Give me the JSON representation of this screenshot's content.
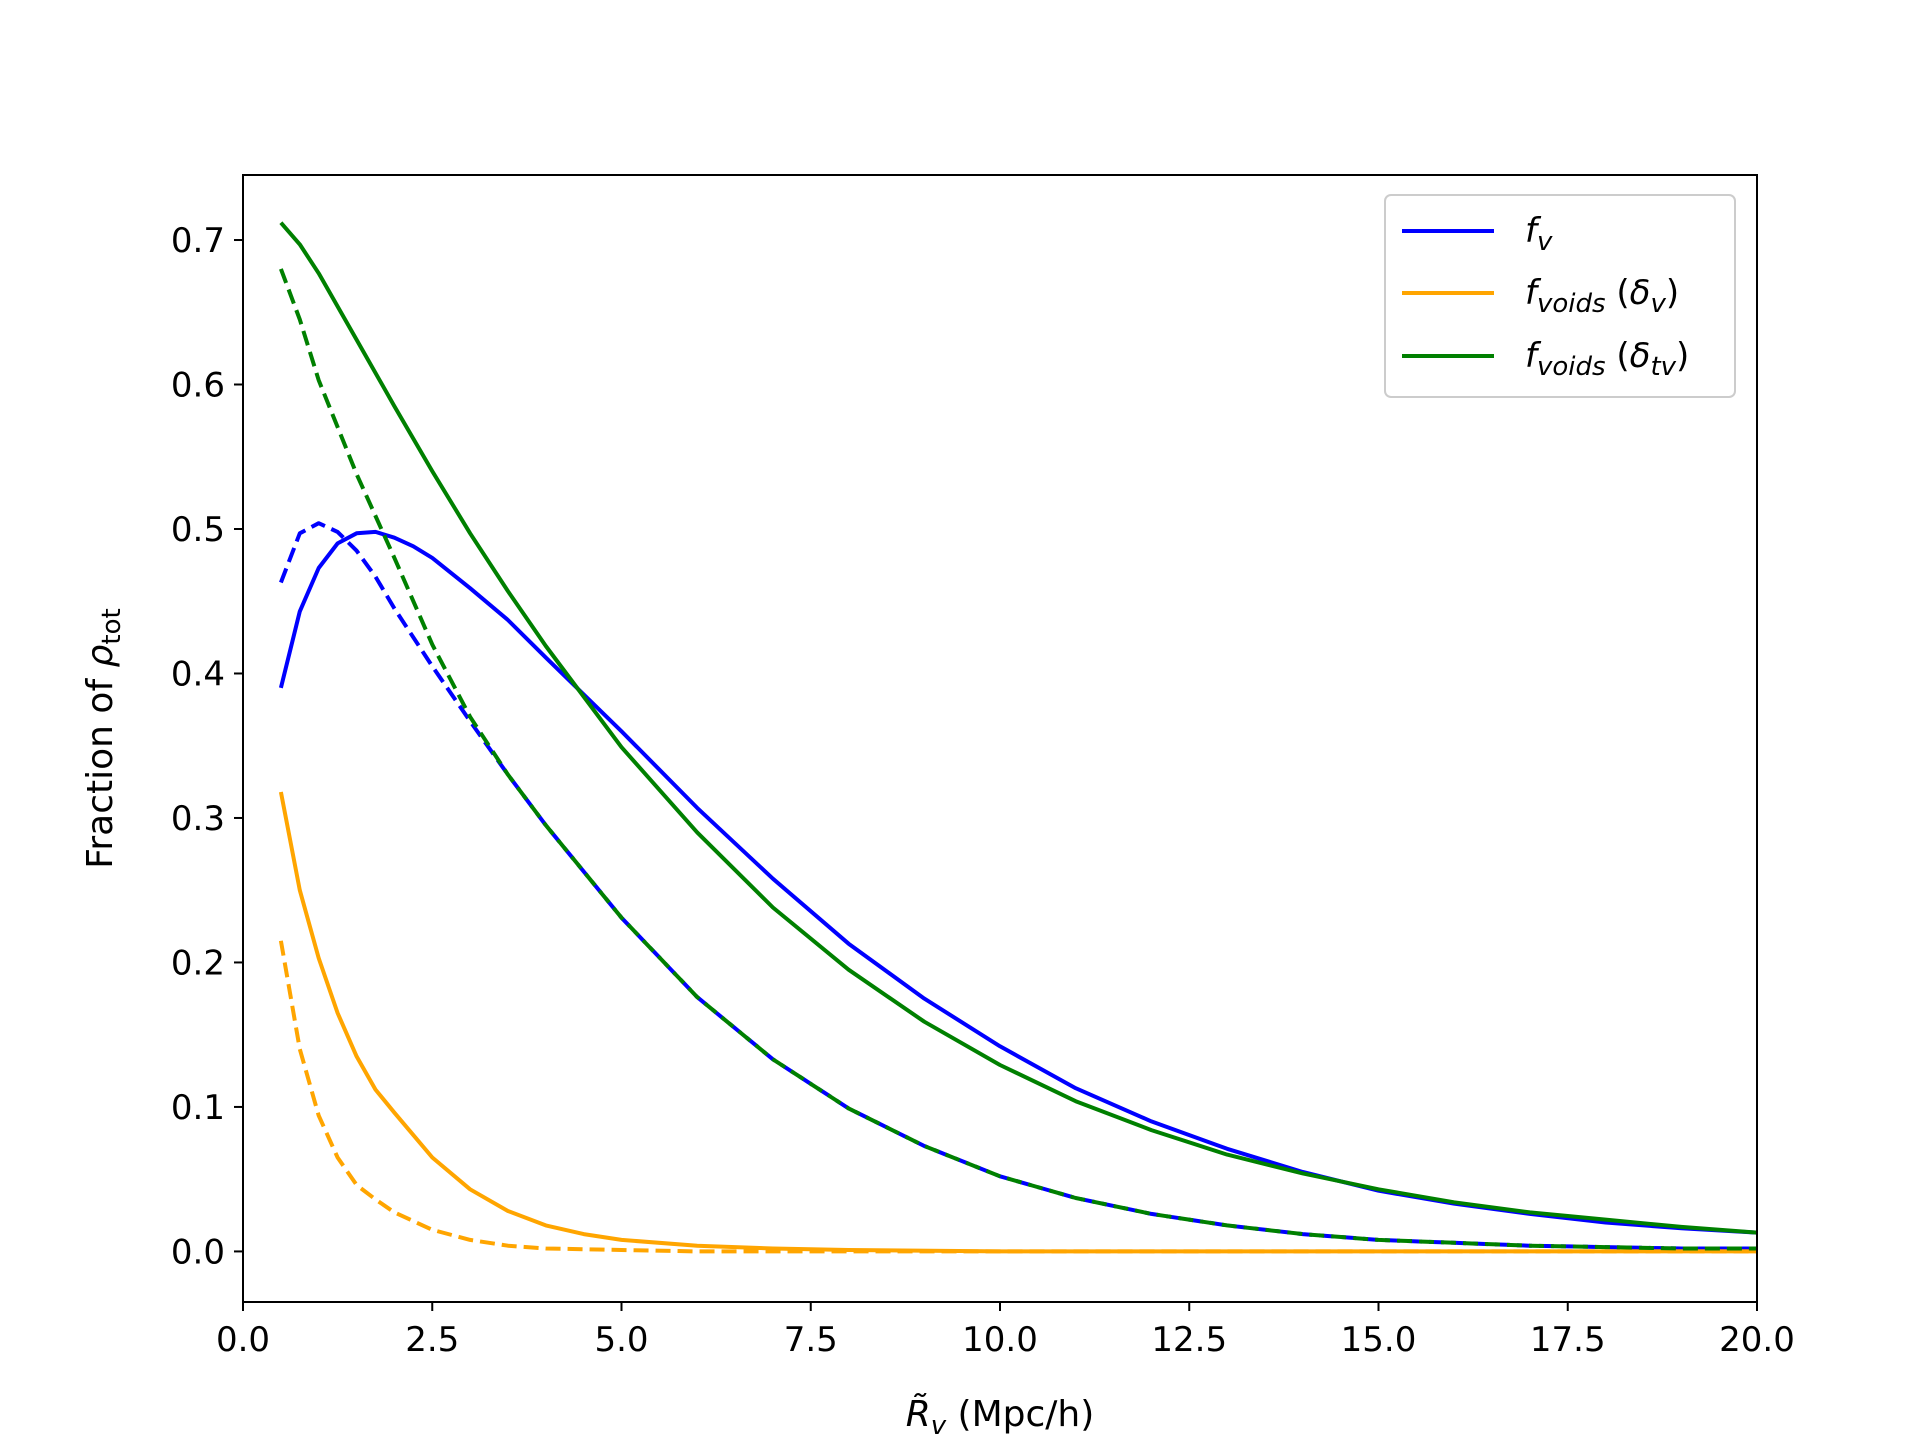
{
  "chart_data": {
    "type": "line",
    "xlabel": "R̃v (Mpc/h)",
    "xlabel_parts": {
      "symbol": "R̃",
      "subscript": "v",
      "unit": " (Mpc/h)"
    },
    "ylabel": "Fraction of ρtot",
    "ylabel_parts": {
      "text": "Fraction of ",
      "symbol": "ρ",
      "subscript": "tot"
    },
    "xlim": [
      0,
      20
    ],
    "ylim": [
      -0.035,
      0.745
    ],
    "xticks": [
      0.0,
      2.5,
      5.0,
      7.5,
      10.0,
      12.5,
      15.0,
      17.5,
      20.0
    ],
    "xtick_labels": [
      "0.0",
      "2.5",
      "5.0",
      "7.5",
      "10.0",
      "12.5",
      "15.0",
      "17.5",
      "20.0"
    ],
    "yticks": [
      0.0,
      0.1,
      0.2,
      0.3,
      0.4,
      0.5,
      0.6,
      0.7
    ],
    "ytick_labels": [
      "0.0",
      "0.1",
      "0.2",
      "0.3",
      "0.4",
      "0.5",
      "0.6",
      "0.7"
    ],
    "grid": false,
    "legend_position": "top-right",
    "legend": [
      {
        "label": "fv",
        "base": "f",
        "sub": "v",
        "paren_symbol": "",
        "paren_sub": "",
        "color": "#0000ff"
      },
      {
        "label": "fvoids (δv)",
        "base": "f",
        "sub": "voids",
        "paren_symbol": "δ",
        "paren_sub": "v",
        "color": "#ffa500"
      },
      {
        "label": "fvoids (δtv)",
        "base": "f",
        "sub": "voids",
        "paren_symbol": "δ",
        "paren_sub": "tv",
        "color": "#008000"
      }
    ],
    "series": [
      {
        "name": "fv",
        "color": "#0000ff",
        "dash": false,
        "x": [
          0.5,
          0.75,
          1.0,
          1.25,
          1.5,
          1.75,
          2.0,
          2.25,
          2.5,
          3.0,
          3.5,
          4.0,
          5.0,
          6.0,
          7.0,
          8.0,
          9.0,
          10.0,
          11.0,
          12.0,
          13.0,
          14.0,
          15.0,
          16.0,
          17.0,
          18.0,
          19.0,
          20.0
        ],
        "y": [
          0.39,
          0.443,
          0.473,
          0.49,
          0.497,
          0.498,
          0.494,
          0.488,
          0.48,
          0.459,
          0.437,
          0.411,
          0.36,
          0.307,
          0.258,
          0.213,
          0.175,
          0.142,
          0.113,
          0.09,
          0.071,
          0.055,
          0.042,
          0.033,
          0.026,
          0.02,
          0.016,
          0.013
        ]
      },
      {
        "name": "fv (dashed)",
        "color": "#0000ff",
        "dash": true,
        "x": [
          0.5,
          0.75,
          1.0,
          1.25,
          1.5,
          1.75,
          2.0,
          2.5,
          3.0,
          3.5,
          4.0,
          5.0,
          6.0,
          7.0,
          8.0,
          9.0,
          10.0,
          11.0,
          12.0,
          13.0,
          14.0,
          15.0,
          16.0,
          17.0,
          18.0,
          19.0,
          20.0
        ],
        "y": [
          0.463,
          0.497,
          0.504,
          0.498,
          0.485,
          0.467,
          0.445,
          0.405,
          0.367,
          0.33,
          0.295,
          0.231,
          0.176,
          0.133,
          0.099,
          0.073,
          0.052,
          0.037,
          0.026,
          0.018,
          0.012,
          0.008,
          0.006,
          0.004,
          0.003,
          0.002,
          0.002
        ]
      },
      {
        "name": "fvoids (δv)",
        "color": "#ffa500",
        "dash": false,
        "x": [
          0.5,
          0.75,
          1.0,
          1.25,
          1.5,
          1.75,
          2.0,
          2.5,
          3.0,
          3.5,
          4.0,
          4.5,
          5.0,
          6.0,
          7.0,
          8.0,
          10.0,
          12.0,
          15.0,
          20.0
        ],
        "y": [
          0.318,
          0.25,
          0.203,
          0.165,
          0.135,
          0.112,
          0.096,
          0.065,
          0.043,
          0.028,
          0.018,
          0.012,
          0.008,
          0.004,
          0.002,
          0.001,
          0.0,
          0.0,
          0.0,
          0.0
        ]
      },
      {
        "name": "fvoids (δv) (dashed)",
        "color": "#ffa500",
        "dash": true,
        "x": [
          0.5,
          0.75,
          1.0,
          1.25,
          1.5,
          1.75,
          2.0,
          2.5,
          3.0,
          3.5,
          4.0,
          5.0,
          6.0,
          8.0,
          10.0,
          15.0,
          20.0
        ],
        "y": [
          0.215,
          0.14,
          0.094,
          0.065,
          0.046,
          0.036,
          0.027,
          0.015,
          0.008,
          0.004,
          0.002,
          0.001,
          0.0,
          0.0,
          0.0,
          0.0,
          0.0
        ]
      },
      {
        "name": "fvoids (δtv)",
        "color": "#008000",
        "dash": false,
        "x": [
          0.5,
          0.75,
          1.0,
          1.5,
          2.0,
          2.5,
          3.0,
          3.5,
          4.0,
          5.0,
          6.0,
          7.0,
          8.0,
          9.0,
          10.0,
          11.0,
          12.0,
          13.0,
          14.0,
          15.0,
          16.0,
          17.0,
          18.0,
          19.0,
          20.0
        ],
        "y": [
          0.712,
          0.697,
          0.677,
          0.631,
          0.585,
          0.54,
          0.497,
          0.457,
          0.419,
          0.349,
          0.29,
          0.238,
          0.195,
          0.159,
          0.129,
          0.104,
          0.084,
          0.067,
          0.054,
          0.043,
          0.034,
          0.027,
          0.022,
          0.017,
          0.013
        ]
      },
      {
        "name": "fvoids (δtv) (dashed)",
        "color": "#008000",
        "dash": true,
        "x": [
          0.5,
          0.75,
          1.0,
          1.5,
          2.0,
          2.5,
          3.0,
          3.5,
          4.0,
          5.0,
          6.0,
          7.0,
          8.0,
          9.0,
          10.0,
          11.0,
          12.0,
          13.0,
          14.0,
          15.0,
          16.0,
          17.0,
          18.0,
          19.0,
          20.0
        ],
        "y": [
          0.68,
          0.645,
          0.603,
          0.538,
          0.48,
          0.42,
          0.37,
          0.33,
          0.295,
          0.231,
          0.176,
          0.133,
          0.099,
          0.073,
          0.052,
          0.037,
          0.026,
          0.018,
          0.012,
          0.008,
          0.006,
          0.004,
          0.003,
          0.002,
          0.002
        ]
      }
    ]
  }
}
